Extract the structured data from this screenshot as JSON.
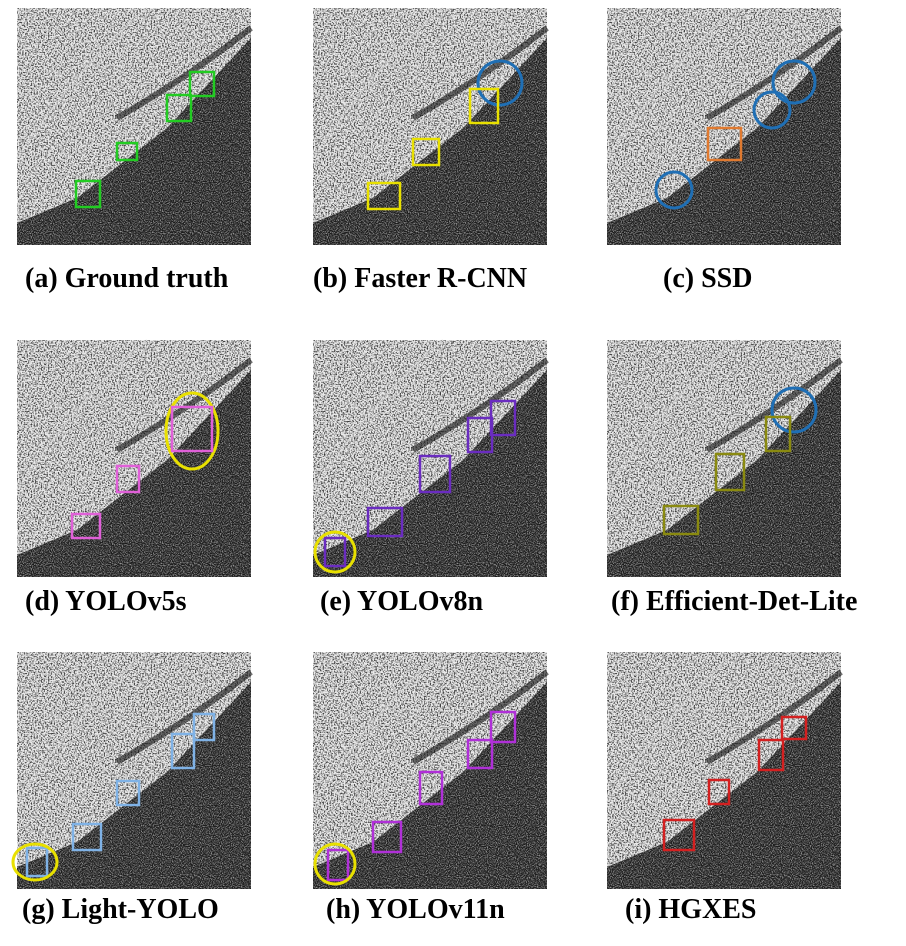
{
  "panels": [
    {
      "caption": "(a) Ground truth"
    },
    {
      "caption": "(b) Faster R-CNN"
    },
    {
      "caption": "(c) SSD"
    },
    {
      "caption": "(d) YOLOv5s"
    },
    {
      "caption": "(e) YOLOv8n"
    },
    {
      "caption": "(f) Efficient-Det-Lite"
    },
    {
      "caption": "(g) Light-YOLO"
    },
    {
      "caption": "(h) YOLOv11n"
    },
    {
      "caption": "(i) HGXES"
    }
  ]
}
